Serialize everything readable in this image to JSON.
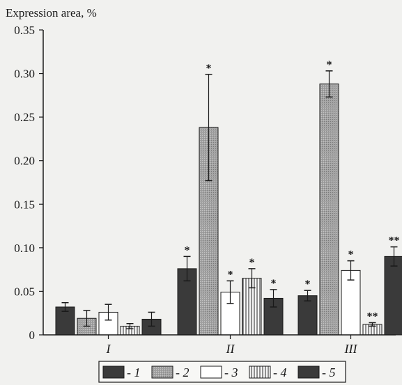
{
  "chart_data": {
    "type": "bar",
    "ylabel": "Expression area, %",
    "ylim": [
      0,
      0.35
    ],
    "yticks": [
      "0",
      "0.05",
      "0.10",
      "0.15",
      "0.20",
      "0.25",
      "0.30",
      "0.35"
    ],
    "categories": [
      "I",
      "II",
      "III"
    ],
    "legend_placement": "bottom",
    "grid": false,
    "series": [
      {
        "name": "1",
        "pattern": "dark",
        "color": "#3a3a3a",
        "values": [
          0.032,
          0.076,
          0.045
        ],
        "errors": [
          0.005,
          0.014,
          0.006
        ],
        "marks": [
          "",
          "*",
          "*"
        ]
      },
      {
        "name": "2",
        "pattern": "dotted",
        "color": "#9a9a9a",
        "values": [
          0.019,
          0.238,
          0.288
        ],
        "errors": [
          0.009,
          0.061,
          0.015
        ],
        "marks": [
          "",
          "*",
          "*"
        ]
      },
      {
        "name": "3",
        "pattern": "white",
        "color": "#ffffff",
        "values": [
          0.026,
          0.049,
          0.074
        ],
        "errors": [
          0.009,
          0.013,
          0.011
        ],
        "marks": [
          "",
          "*",
          "*"
        ]
      },
      {
        "name": "4",
        "pattern": "vertical-lines",
        "color": "#e0e0e0",
        "values": [
          0.01,
          0.065,
          0.012
        ],
        "errors": [
          0.003,
          0.011,
          0.002
        ],
        "marks": [
          "",
          "*",
          "**"
        ]
      },
      {
        "name": "5",
        "pattern": "dark",
        "color": "#3a3a3a",
        "values": [
          0.018,
          0.042,
          0.09
        ],
        "errors": [
          0.008,
          0.01,
          0.011
        ],
        "marks": [
          "",
          "*",
          "**"
        ]
      }
    ]
  }
}
